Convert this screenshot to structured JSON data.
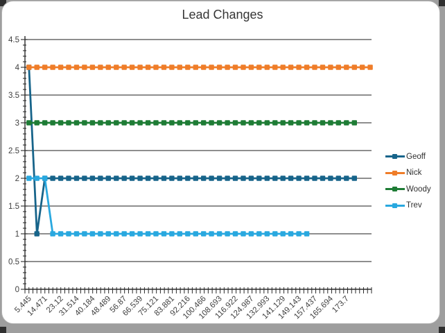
{
  "title": "Lead Changes",
  "colors": {
    "background_page": "#9E9E9E",
    "chart_background": "#FFFFFF",
    "chart_border": "#B3B3B3",
    "gridline": "#4A4A4A",
    "axis": "#2B2B2B",
    "label_text": "#3F3F3F",
    "geoff": "#17648A",
    "nick": "#EF7D29",
    "woody": "#1E7C35",
    "trev": "#29A8DF"
  },
  "chart_data": {
    "type": "line",
    "title": "Lead Changes",
    "xlabel": "",
    "ylabel": "",
    "ylim": [
      0,
      4.5
    ],
    "y_tick_step": 0.5,
    "y_minor_tick_step": 0.1,
    "grid": true,
    "legend_position": "right",
    "x_labels_every_n_points": 2,
    "y_tick_labels": [
      "0",
      "0.5",
      "1",
      "1.5",
      "2",
      "2.5",
      "3",
      "3.5",
      "4",
      "4.5"
    ],
    "x_tick_labels": [
      "5.445",
      "14.471",
      "23.12",
      "31.514",
      "40.184",
      "48.489",
      "56.87",
      "66.539",
      "75.121",
      "83.881",
      "92.216",
      "100.466",
      "108.693",
      "116.922",
      "124.987",
      "132.993",
      "141.129",
      "149.143",
      "157.437",
      "165.694",
      "173.7"
    ],
    "series": [
      {
        "name": "Geoff",
        "color": "#17648A",
        "values": [
          4,
          1,
          2,
          2,
          2,
          2,
          2,
          2,
          2,
          2,
          2,
          2,
          2,
          2,
          2,
          2,
          2,
          2,
          2,
          2,
          2,
          2,
          2,
          2,
          2,
          2,
          2,
          2,
          2,
          2,
          2,
          2,
          2,
          2,
          2,
          2,
          2,
          2,
          2,
          2,
          2,
          2
        ]
      },
      {
        "name": "Nick",
        "color": "#EF7D29",
        "values": [
          4,
          4,
          4,
          4,
          4,
          4,
          4,
          4,
          4,
          4,
          4,
          4,
          4,
          4,
          4,
          4,
          4,
          4,
          4,
          4,
          4,
          4,
          4,
          4,
          4,
          4,
          4,
          4,
          4,
          4,
          4,
          4,
          4,
          4,
          4,
          4,
          4,
          4,
          4,
          4,
          4,
          4,
          4,
          4
        ]
      },
      {
        "name": "Woody",
        "color": "#1E7C35",
        "values": [
          3,
          3,
          3,
          3,
          3,
          3,
          3,
          3,
          3,
          3,
          3,
          3,
          3,
          3,
          3,
          3,
          3,
          3,
          3,
          3,
          3,
          3,
          3,
          3,
          3,
          3,
          3,
          3,
          3,
          3,
          3,
          3,
          3,
          3,
          3,
          3,
          3,
          3,
          3,
          3,
          3,
          3
        ]
      },
      {
        "name": "Trev",
        "color": "#29A8DF",
        "values": [
          2,
          2,
          2,
          1,
          1,
          1,
          1,
          1,
          1,
          1,
          1,
          1,
          1,
          1,
          1,
          1,
          1,
          1,
          1,
          1,
          1,
          1,
          1,
          1,
          1,
          1,
          1,
          1,
          1,
          1,
          1,
          1,
          1,
          1,
          1,
          1
        ]
      }
    ]
  }
}
